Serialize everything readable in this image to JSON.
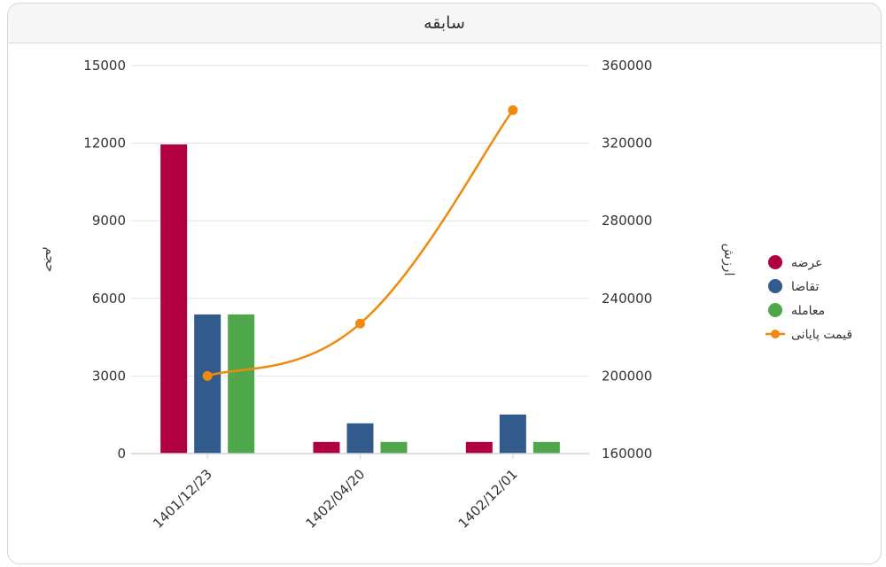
{
  "card": {
    "title": "سابقه"
  },
  "colors": {
    "supply": "#b0003f",
    "demand": "#335a8c",
    "trade": "#4ea84a",
    "price": "#f08a0c",
    "grid": "#e3e3e3",
    "axis": "#c9d3e0"
  },
  "chart_data": {
    "type": "bar",
    "categories": [
      "1401/12/23",
      "1402/04/20",
      "1402/12/01"
    ],
    "series": [
      {
        "name": "عرضه",
        "kind": "bar",
        "axis": "left",
        "color_key": "supply",
        "values": [
          11950,
          450,
          450
        ]
      },
      {
        "name": "تقاضا",
        "kind": "bar",
        "axis": "left",
        "color_key": "demand",
        "values": [
          5380,
          1170,
          1510
        ]
      },
      {
        "name": "معامله",
        "kind": "bar",
        "axis": "left",
        "color_key": "trade",
        "values": [
          5380,
          450,
          450
        ]
      },
      {
        "name": "قیمت پایانی",
        "kind": "line",
        "axis": "right",
        "color_key": "price",
        "values": [
          200000,
          227000,
          337000
        ]
      }
    ],
    "y_left": {
      "label": "حجم",
      "min": 0,
      "max": 15000,
      "ticks": [
        0,
        3000,
        6000,
        9000,
        12000,
        15000
      ]
    },
    "y_right": {
      "label": "ارزش",
      "min": 160000,
      "max": 360000,
      "ticks": [
        160000,
        200000,
        240000,
        280000,
        320000,
        360000
      ]
    },
    "grid": true,
    "legend_position": "right"
  }
}
